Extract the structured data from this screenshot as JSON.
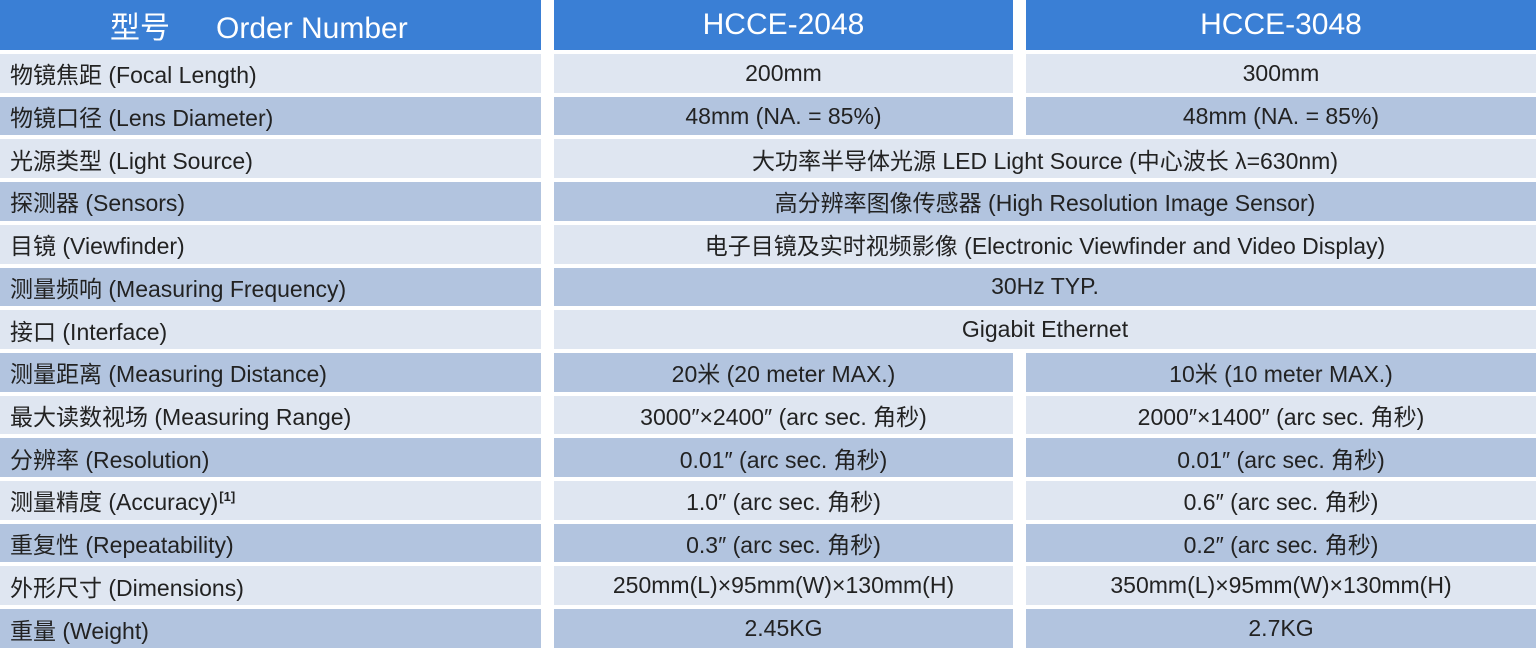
{
  "header": {
    "label_zh": "型号",
    "label_en": "Order Number",
    "model_a": "HCCE-2048",
    "model_b": "HCCE-3048"
  },
  "colors": {
    "header_bg": "#3a7fd5",
    "row_light": "#dfe6f1",
    "row_dark": "#b2c4df"
  },
  "rows": [
    {
      "param": "物镜焦距 (Focal Length)",
      "a": "200mm",
      "b": "300mm"
    },
    {
      "param": "物镜口径 (Lens Diameter)",
      "a": "48mm (NA. = 85%)",
      "b": "48mm (NA. = 85%)"
    },
    {
      "param": "光源类型 (Light Source)",
      "merged": "大功率半导体光源 LED Light Source (中心波长 λ=630nm)"
    },
    {
      "param": "探测器 (Sensors)",
      "merged": "高分辨率图像传感器 (High Resolution Image Sensor)"
    },
    {
      "param": "目镜 (Viewfinder)",
      "merged": "电子目镜及实时视频影像 (Electronic Viewfinder and Video Display)"
    },
    {
      "param": "测量频响 (Measuring Frequency)",
      "merged": "30Hz TYP."
    },
    {
      "param": "接口 (Interface)",
      "merged": "Gigabit Ethernet"
    },
    {
      "param": "测量距离 (Measuring Distance)",
      "a": "20米 (20 meter MAX.)",
      "b": "10米 (10 meter MAX.)"
    },
    {
      "param": "最大读数视场 (Measuring Range)",
      "a": "3000″×2400″ (arc sec. 角秒)",
      "b": "2000″×1400″ (arc sec. 角秒)"
    },
    {
      "param": "分辨率 (Resolution)",
      "a": "0.01″ (arc sec. 角秒)",
      "b": "0.01″ (arc sec. 角秒)"
    },
    {
      "param": "测量精度 (Accuracy)",
      "note": "[1]",
      "a": "1.0″ (arc sec. 角秒)",
      "b": "0.6″ (arc sec. 角秒)"
    },
    {
      "param": "重复性 (Repeatability)",
      "a": "0.3″ (arc sec. 角秒)",
      "b": "0.2″ (arc sec. 角秒)"
    },
    {
      "param": "外形尺寸 (Dimensions)",
      "a": "250mm(L)×95mm(W)×130mm(H)",
      "b": "350mm(L)×95mm(W)×130mm(H)"
    },
    {
      "param": "重量 (Weight)",
      "a": "2.45KG",
      "b": "2.7KG"
    }
  ]
}
